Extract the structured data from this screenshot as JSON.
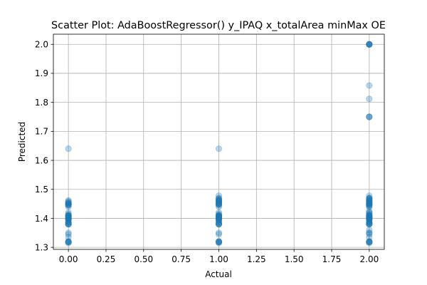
{
  "chart_data": {
    "type": "scatter",
    "title": "Scatter Plot: AdaBoostRegressor() y_IPAQ x_totalArea minMax OE",
    "xlabel": "Actual",
    "ylabel": "Predicted",
    "xlim": [
      -0.1,
      2.1
    ],
    "ylim": [
      1.293,
      2.035
    ],
    "xticks": [
      0.0,
      0.25,
      0.5,
      0.75,
      1.0,
      1.25,
      1.5,
      1.75,
      2.0
    ],
    "xtick_labels": [
      "0.00",
      "0.25",
      "0.50",
      "0.75",
      "1.00",
      "1.25",
      "1.50",
      "1.75",
      "2.00"
    ],
    "yticks": [
      1.3,
      1.4,
      1.5,
      1.6,
      1.7,
      1.8,
      1.9,
      2.0
    ],
    "ytick_labels": [
      "1.3",
      "1.4",
      "1.5",
      "1.6",
      "1.7",
      "1.8",
      "1.9",
      "2.0"
    ],
    "grid": true,
    "point_color": "#1f77b4",
    "point_alpha": 0.3,
    "series": [
      {
        "x": [
          0,
          0,
          0,
          0,
          0,
          0,
          0,
          0,
          0,
          0,
          0,
          0,
          0,
          0,
          0,
          0,
          0,
          0,
          0,
          0,
          0,
          0,
          0,
          0,
          0,
          0,
          0,
          0,
          0,
          0,
          0,
          0,
          0,
          0,
          0,
          0,
          0,
          0,
          0,
          0,
          0,
          0,
          0,
          0,
          0,
          0,
          0,
          0,
          1,
          1,
          1,
          1,
          1,
          1,
          1,
          1,
          1,
          1,
          1,
          1,
          1,
          1,
          1,
          1,
          1,
          1,
          1,
          1,
          1,
          1,
          1,
          1,
          1,
          1,
          1,
          1,
          1,
          1,
          1,
          1,
          1,
          1,
          1,
          1,
          1,
          1,
          1,
          1,
          1,
          1,
          1,
          1,
          1,
          1,
          1,
          1,
          1,
          1,
          1,
          1,
          2,
          2,
          2,
          2,
          2,
          2,
          2,
          2,
          2,
          2,
          2,
          2,
          2,
          2,
          2,
          2,
          2,
          2,
          2,
          2,
          2,
          2,
          2,
          2,
          2,
          2,
          2,
          2,
          2,
          2,
          2,
          2,
          2,
          2,
          2,
          2,
          2,
          2,
          2,
          2,
          2,
          2,
          2,
          2,
          2,
          2,
          2,
          2,
          2,
          2,
          2,
          2,
          2,
          2,
          2,
          2,
          2,
          2,
          2,
          2,
          2,
          2,
          2,
          2,
          2,
          2,
          2,
          2,
          2,
          2,
          2
        ],
        "y": [
          1.64,
          1.462,
          1.458,
          1.455,
          1.45,
          1.45,
          1.448,
          1.445,
          1.44,
          1.42,
          1.415,
          1.41,
          1.41,
          1.408,
          1.405,
          1.405,
          1.402,
          1.4,
          1.4,
          1.398,
          1.395,
          1.39,
          1.385,
          1.385,
          1.38,
          1.38,
          1.35,
          1.345,
          1.335,
          1.32,
          1.318,
          1.318,
          1.315,
          1.45,
          1.45,
          1.41,
          1.41,
          1.4,
          1.4,
          1.38,
          1.38,
          1.32,
          1.32,
          1.455,
          1.405,
          1.395,
          1.445,
          1.385,
          1.64,
          1.478,
          1.47,
          1.468,
          1.465,
          1.462,
          1.46,
          1.458,
          1.455,
          1.45,
          1.45,
          1.448,
          1.445,
          1.44,
          1.42,
          1.415,
          1.41,
          1.41,
          1.408,
          1.405,
          1.405,
          1.402,
          1.4,
          1.4,
          1.398,
          1.395,
          1.39,
          1.385,
          1.385,
          1.38,
          1.38,
          1.35,
          1.345,
          1.32,
          1.318,
          1.318,
          1.315,
          1.46,
          1.45,
          1.45,
          1.41,
          1.41,
          1.4,
          1.4,
          1.38,
          1.38,
          1.32,
          1.32,
          1.455,
          1.405,
          1.395,
          1.465,
          2.0,
          2.0,
          2.0,
          2.0,
          2.0,
          2.0,
          1.858,
          1.812,
          1.75,
          1.75,
          1.75,
          1.478,
          1.47,
          1.468,
          1.465,
          1.462,
          1.46,
          1.458,
          1.455,
          1.45,
          1.45,
          1.448,
          1.445,
          1.44,
          1.425,
          1.42,
          1.415,
          1.41,
          1.41,
          1.408,
          1.405,
          1.405,
          1.402,
          1.4,
          1.4,
          1.398,
          1.395,
          1.39,
          1.385,
          1.385,
          1.38,
          1.38,
          1.36,
          1.35,
          1.345,
          1.335,
          1.32,
          1.318,
          1.318,
          1.315,
          1.46,
          1.45,
          1.45,
          1.41,
          1.41,
          1.4,
          1.4,
          1.38,
          1.38,
          1.32,
          1.32,
          1.455,
          1.405,
          1.395,
          1.465,
          1.445,
          1.385,
          1.35,
          1.47,
          1.42,
          1.44
        ]
      }
    ]
  }
}
